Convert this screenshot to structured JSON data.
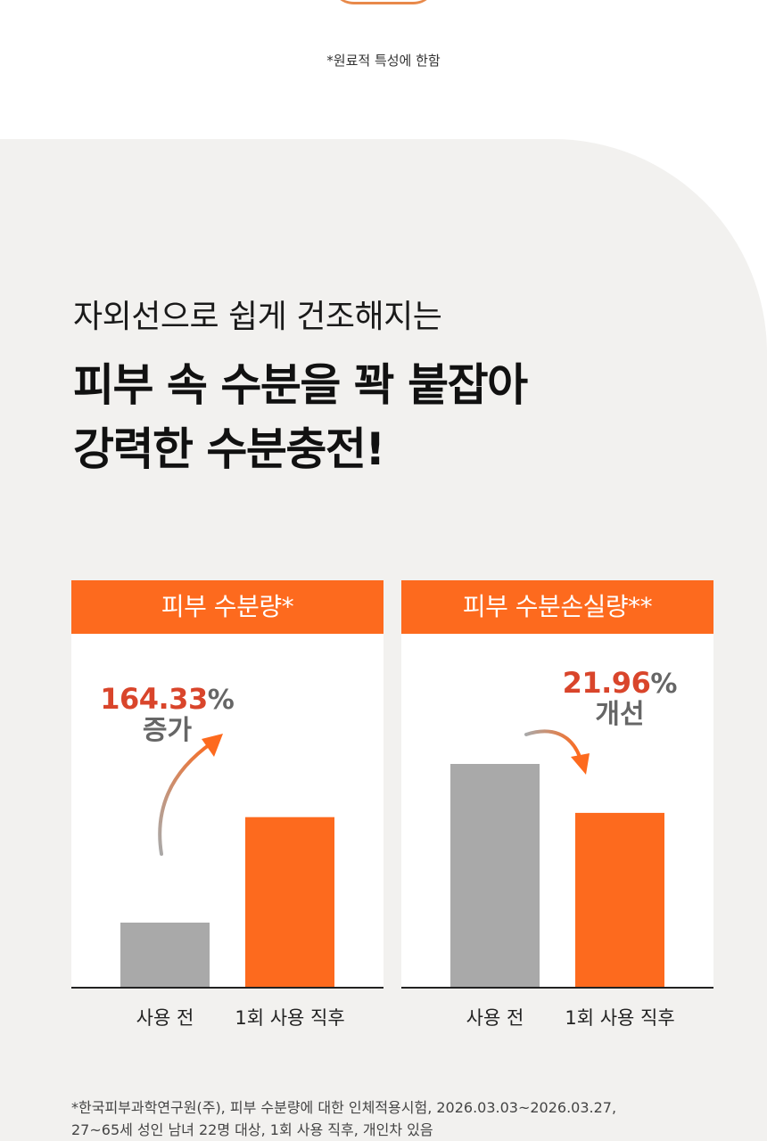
{
  "disclaimer": "*원료적 특성에 한함",
  "headline": {
    "sub": "자외선으로 쉽게 건조해지는",
    "main_line1": "피부 속 수분을 꽉 붙잡아",
    "main_line2": "강력한 수분충전!"
  },
  "colors": {
    "accent": "#fd6a1e",
    "bar_before": "#a9a9a9",
    "highlight": "#d9452b"
  },
  "chart_data": [
    {
      "type": "bar",
      "title": "피부 수분량*",
      "categories": [
        "사용 전",
        "1회 사용 직후"
      ],
      "values": [
        1.0,
        2.6433
      ],
      "annotation": {
        "value": "164.33",
        "unit": "%",
        "word": "증가"
      }
    },
    {
      "type": "bar",
      "title": "피부 수분손실량**",
      "categories": [
        "사용 전",
        "1회 사용 직후"
      ],
      "values": [
        1.0,
        0.7804
      ],
      "annotation": {
        "value": "21.96",
        "unit": "%",
        "word": "개선"
      }
    }
  ],
  "footnote": {
    "line1": "*한국피부과학연구원(주), 피부 수분량에 대한 인체적용시험, 2026.03.03~2026.03.27,",
    "line2": "27~65세 성인 남녀 22명 대상, 1회 사용 직후, 개인차 있음"
  }
}
